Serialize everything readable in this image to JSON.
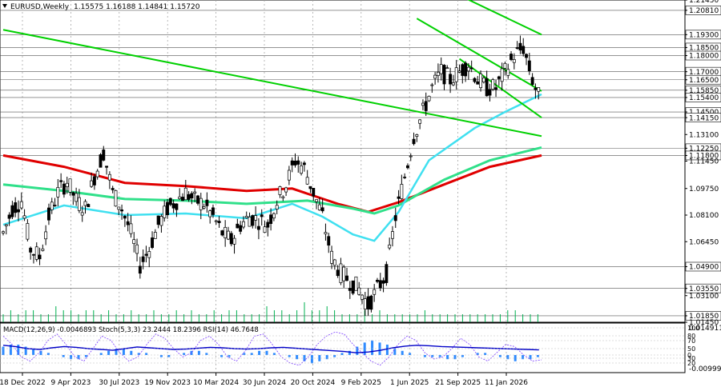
{
  "header": {
    "symbol": "EURUSD,Weekly",
    "ohlc": "1.15575 1.16188 1.14841 1.15720"
  },
  "indicator_header": "MACD(12,26,9) -0.0046893  Stoch(5,3,3) 23.2444 18.2396  RSI(14) 46.7648",
  "chart_data": {
    "type": "candlestick",
    "x_labels": [
      "18 Dec 2022",
      "9 Apr 2023",
      "30 Jul 2023",
      "19 Nov 2023",
      "10 Mar 2024",
      "30 Jun 2024",
      "20 Oct 2024",
      "9 Feb 2025",
      "1 Jun 2025",
      "21 Sep 2025",
      "11 Jan 2026"
    ],
    "price_ticks": [
      "1.21450",
      "1.20810",
      "1.19300",
      "1.18500",
      "1.18000",
      "1.17000",
      "1.16500",
      "1.15850",
      "1.15400",
      "1.14500",
      "1.14150",
      "1.13100",
      "1.12250",
      "1.11800",
      "1.11450",
      "1.09750",
      "1.08100",
      "1.06450",
      "1.04900",
      "1.03550",
      "1.03100",
      "1.01850",
      "1.01450"
    ],
    "highlighted_levels": [
      "1.20810",
      "1.19300",
      "1.18500",
      "1.18000",
      "1.17000",
      "1.16500",
      "1.15850",
      "1.15400",
      "1.14500",
      "1.14150",
      "1.12250",
      "1.11800",
      "1.04900",
      "1.03550",
      "1.01850"
    ],
    "ylim": [
      1.0145,
      1.2145
    ],
    "indicator_ticks": [
      "0.0149116",
      "-0.009991"
    ],
    "indicator_levels": [
      "100",
      "80",
      "70",
      "50",
      "30",
      "20",
      "0"
    ],
    "price_path": [
      [
        0,
        1.07
      ],
      [
        3,
        1.085
      ],
      [
        6,
        1.09
      ],
      [
        9,
        1.06
      ],
      [
        12,
        1.055
      ],
      [
        15,
        1.08
      ],
      [
        18,
        1.095
      ],
      [
        21,
        1.102
      ],
      [
        24,
        1.09
      ],
      [
        27,
        1.085
      ],
      [
        30,
        1.105
      ],
      [
        33,
        1.12
      ],
      [
        36,
        1.095
      ],
      [
        39,
        1.085
      ],
      [
        42,
        1.07
      ],
      [
        45,
        1.05
      ],
      [
        48,
        1.06
      ],
      [
        51,
        1.075
      ],
      [
        54,
        1.085
      ],
      [
        57,
        1.09
      ],
      [
        60,
        1.095
      ],
      [
        63,
        1.09
      ],
      [
        66,
        1.088
      ],
      [
        69,
        1.08
      ],
      [
        72,
        1.07
      ],
      [
        75,
        1.065
      ],
      [
        78,
        1.075
      ],
      [
        81,
        1.08
      ],
      [
        84,
        1.078
      ],
      [
        87,
        1.075
      ],
      [
        90,
        1.09
      ],
      [
        93,
        1.1
      ],
      [
        96,
        1.115
      ],
      [
        99,
        1.11
      ],
      [
        102,
        1.095
      ],
      [
        105,
        1.08
      ],
      [
        108,
        1.055
      ],
      [
        111,
        1.045
      ],
      [
        114,
        1.04
      ],
      [
        117,
        1.035
      ],
      [
        120,
        1.025
      ],
      [
        123,
        1.035
      ],
      [
        126,
        1.045
      ],
      [
        129,
        1.08
      ],
      [
        132,
        1.105
      ],
      [
        135,
        1.13
      ],
      [
        138,
        1.145
      ],
      [
        141,
        1.16
      ],
      [
        144,
        1.17
      ],
      [
        147,
        1.165
      ],
      [
        150,
        1.17
      ],
      [
        153,
        1.175
      ],
      [
        156,
        1.165
      ],
      [
        159,
        1.16
      ],
      [
        162,
        1.16
      ],
      [
        165,
        1.17
      ],
      [
        168,
        1.18
      ],
      [
        171,
        1.185
      ],
      [
        174,
        1.165
      ],
      [
        177,
        1.15
      ]
    ],
    "x_index_range": [
      0,
      177
    ],
    "ma_red": [
      [
        0,
        1.118
      ],
      [
        20,
        1.111
      ],
      [
        40,
        1.101
      ],
      [
        60,
        1.099
      ],
      [
        80,
        1.096
      ],
      [
        95,
        1.0975
      ],
      [
        110,
        1.088
      ],
      [
        120,
        1.083
      ],
      [
        130,
        1.089
      ],
      [
        145,
        1.1
      ],
      [
        160,
        1.111
      ],
      [
        177,
        1.118
      ]
    ],
    "ma_green": [
      [
        0,
        1.1
      ],
      [
        20,
        1.096
      ],
      [
        40,
        1.091
      ],
      [
        60,
        1.09
      ],
      [
        80,
        1.088
      ],
      [
        100,
        1.09
      ],
      [
        115,
        1.085
      ],
      [
        122,
        1.082
      ],
      [
        130,
        1.087
      ],
      [
        145,
        1.103
      ],
      [
        160,
        1.115
      ],
      [
        177,
        1.123
      ]
    ],
    "ma_cyan": [
      [
        0,
        1.075
      ],
      [
        20,
        1.087
      ],
      [
        40,
        1.081
      ],
      [
        60,
        1.082
      ],
      [
        80,
        1.079
      ],
      [
        95,
        1.088
      ],
      [
        105,
        1.08
      ],
      [
        115,
        1.069
      ],
      [
        122,
        1.065
      ],
      [
        130,
        1.083
      ],
      [
        140,
        1.115
      ],
      [
        155,
        1.135
      ],
      [
        165,
        1.145
      ],
      [
        177,
        1.156
      ]
    ],
    "trend_lines": [
      {
        "from": [
          0,
          1.196
        ],
        "to": [
          177,
          1.13
        ]
      },
      {
        "from": [
          136,
          1.23
        ],
        "to": [
          177,
          1.193
        ]
      },
      {
        "from": [
          136,
          1.203
        ],
        "to": [
          177,
          1.158
        ]
      },
      {
        "from": [
          150,
          1.178
        ],
        "to": [
          177,
          1.1415
        ]
      }
    ],
    "volume_bars": [
      2,
      3,
      2,
      3,
      3,
      2,
      2,
      4,
      3,
      3,
      2,
      3,
      3,
      2,
      3,
      2,
      2,
      3,
      2,
      2,
      3,
      2,
      2,
      3,
      2,
      3,
      2,
      2,
      3,
      2,
      3,
      3,
      2,
      2,
      2,
      4,
      3,
      3,
      2,
      3,
      5,
      3,
      3,
      4,
      3,
      2,
      2,
      2,
      3,
      2,
      3,
      2,
      2,
      2,
      2,
      2,
      3,
      2,
      2,
      2,
      2,
      2,
      2,
      2,
      2,
      2,
      2,
      3,
      3,
      2,
      2,
      2
    ],
    "macd_hist": [
      4,
      5,
      5,
      4,
      3,
      2,
      1,
      0,
      -1,
      -2,
      -2,
      -1,
      0,
      1,
      2,
      3,
      3,
      2,
      1,
      1,
      0,
      -1,
      -1,
      0,
      1,
      2,
      2,
      1,
      0,
      -1,
      -1,
      0,
      1,
      1,
      2,
      2,
      1,
      0,
      -1,
      -2,
      -3,
      -4,
      -3,
      -2,
      -1,
      1,
      2,
      4,
      6,
      7,
      6,
      5,
      3,
      2,
      1,
      0,
      -1,
      -1,
      -1,
      -2,
      -2,
      -1,
      0,
      1,
      1,
      0,
      -1,
      -2,
      -3,
      -2,
      -2,
      -1
    ],
    "stoch_k": [
      80,
      60,
      30,
      20,
      40,
      70,
      85,
      60,
      30,
      20,
      50,
      80,
      70,
      40,
      20,
      30,
      60,
      85,
      75,
      50,
      30,
      40,
      70,
      80,
      60,
      30,
      20,
      45,
      80,
      85,
      60,
      30,
      15,
      10,
      30,
      60,
      80,
      90,
      85,
      60,
      40,
      20,
      10,
      30,
      60,
      80,
      70,
      40,
      25,
      30,
      50,
      75,
      60,
      30,
      20,
      40,
      60,
      55,
      35,
      20,
      23
    ],
    "rsi": [
      58,
      55,
      50,
      48,
      52,
      55,
      53,
      50,
      48,
      46,
      50,
      54,
      52,
      50,
      48,
      49,
      51,
      53,
      52,
      50,
      49,
      50,
      52,
      53,
      51,
      49,
      47,
      45,
      43,
      40,
      42,
      46,
      52,
      56,
      58,
      57,
      55,
      54,
      53,
      52,
      51,
      50,
      49,
      48,
      47
    ]
  }
}
